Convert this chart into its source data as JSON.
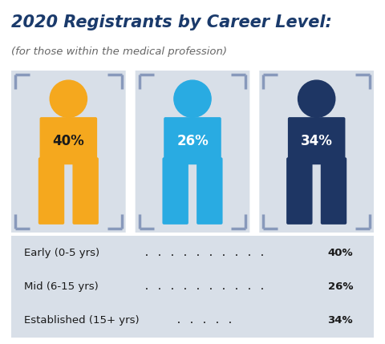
{
  "title_line1": "2020 Registrants by Career Level:",
  "title_line2": "(for those within the medical profession)",
  "title_color": "#1a3a6b",
  "subtitle_color": "#666666",
  "background_color": "#ffffff",
  "persons": [
    {
      "label": "40%",
      "color": "#f5a81e",
      "text_color": "#1a1a1a"
    },
    {
      "label": "26%",
      "color": "#29abe2",
      "text_color": "#ffffff"
    },
    {
      "label": "34%",
      "color": "#1e3664",
      "text_color": "#ffffff"
    }
  ],
  "legend_items": [
    {
      "text": "Early (0-5 yrs) . . . . . . . . . . . 40%"
    },
    {
      "text": "Mid (6-15 yrs) . . . . . . . . . . . 26%"
    },
    {
      "text": "Established (15+ yrs)  . . . . . 34%"
    }
  ],
  "panel_bg": "#d8dfe8",
  "bracket_color": "#8899bb",
  "legend_bg": "#d8dfe8"
}
